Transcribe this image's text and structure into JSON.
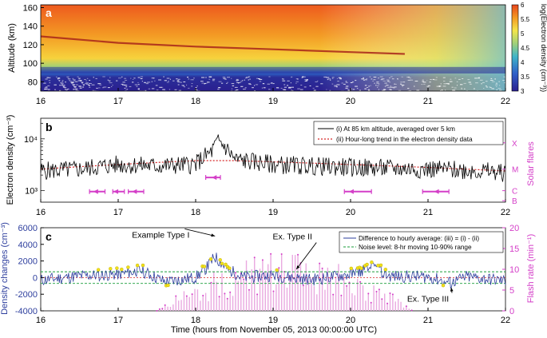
{
  "figure": {
    "xlabel": "Time (hours from November 05, 2013 00:00:00 UTC)",
    "xticks": [
      16,
      17,
      18,
      19,
      20,
      21,
      22
    ]
  },
  "colors": {
    "black": "#000000",
    "trend_red": "#d62728",
    "blue_series": "#2e3f9e",
    "magenta": "#d43fc8",
    "green_noise": "#1a9e3a",
    "peak_yellow": "#f2e21a",
    "flash_pink": "#e9a9e0"
  },
  "chart_data": [
    {
      "panel": "a",
      "type": "heatmap",
      "ylabel": "Altitude (km)",
      "yticks": [
        80,
        100,
        120,
        140,
        160
      ],
      "ylim": [
        70,
        163
      ],
      "xlim": [
        16,
        22
      ],
      "colorbar_label": "log(Electron density (cm⁻³))",
      "colorbar_ticks": [
        3,
        3.5,
        4,
        4.5,
        5,
        5.5,
        6
      ],
      "colorbar_range": [
        3,
        6
      ],
      "sporadic_layer_altitude": [
        [
          16.0,
          129
        ],
        [
          17.0,
          122
        ],
        [
          18.0,
          118
        ],
        [
          19.0,
          115
        ],
        [
          20.0,
          112
        ],
        [
          20.7,
          110
        ]
      ]
    },
    {
      "panel": "b",
      "type": "line",
      "ylabel": "Electron density (cm⁻³)",
      "yscale": "log",
      "yticks": [
        "10³",
        "10⁴"
      ],
      "xlim": [
        16,
        22
      ],
      "legend": [
        "(i) At 85 km altitude, averaged over 5 km",
        "(ii) Hour-long trend in the electron density data"
      ],
      "legend_position": "top-right",
      "right_axis_label": "Solar flares",
      "right_axis_ticks": [
        "X",
        "M",
        "C",
        "B"
      ],
      "series": [
        {
          "name": "(i) At 85 km altitude, averaged over 5 km",
          "x": [
            16.0,
            16.5,
            17.0,
            17.5,
            18.0,
            18.2,
            18.3,
            18.5,
            19.0,
            19.5,
            20.0,
            20.5,
            21.0,
            21.5,
            22.0
          ],
          "y": [
            2400,
            2600,
            3200,
            3000,
            3200,
            5500,
            9000,
            4000,
            3200,
            3000,
            2800,
            2700,
            2600,
            2500,
            2200
          ]
        },
        {
          "name": "(ii) Hour-long trend in the electron density data",
          "x": [
            16.0,
            16.5,
            17.0,
            17.5,
            18.0,
            18.5,
            19.0,
            19.5,
            20.0,
            20.5,
            21.0,
            21.5,
            22.0
          ],
          "y": [
            2600,
            2900,
            3200,
            3500,
            3800,
            3800,
            3600,
            3400,
            3200,
            3000,
            2800,
            2600,
            2400
          ]
        }
      ],
      "solar_flares": [
        {
          "start": 16.63,
          "peak": 16.72,
          "end": 16.83,
          "class": "C"
        },
        {
          "start": 16.93,
          "peak": 16.98,
          "end": 17.08,
          "class": "C"
        },
        {
          "start": 17.13,
          "peak": 17.22,
          "end": 17.33,
          "class": "C"
        },
        {
          "start": 18.13,
          "peak": 18.25,
          "end": 18.32,
          "class": "M1"
        },
        {
          "start": 19.92,
          "peak": 20.02,
          "end": 20.27,
          "class": "C"
        },
        {
          "start": 20.93,
          "peak": 21.12,
          "end": 21.27,
          "class": "C"
        }
      ]
    },
    {
      "panel": "c",
      "type": "line",
      "ylabel": "Density changes (cm⁻³)",
      "yticks": [
        -4000,
        -2000,
        0,
        2000,
        4000,
        6000
      ],
      "ylim": [
        -4000,
        6000
      ],
      "xlim": [
        16,
        22
      ],
      "right_axis_label": "Flash rate (min⁻¹)",
      "right_axis_ticks": [
        0,
        5,
        10,
        15,
        20
      ],
      "right_ylim": [
        0,
        20
      ],
      "legend": [
        "Difference to hourly average: (iii) = (i) - (ii)",
        "Noise level: 8-hr moving 10-90% range"
      ],
      "legend_position": "top-right",
      "noise_level": [
        -700,
        700
      ],
      "annotations": [
        {
          "text": "Example Type I",
          "x": 17.55,
          "y": 4800,
          "arrow_to": [
            18.25,
            5000
          ]
        },
        {
          "text": "Ex. Type II",
          "x": 19.25,
          "y": 4600,
          "arrow_to": [
            19.3,
            1000
          ]
        },
        {
          "text": "Ex. Type III",
          "x": 21.0,
          "y": -2900,
          "arrow_to": [
            21.3,
            -1200
          ]
        }
      ],
      "series": [
        {
          "name": "Difference to hourly average: (iii) = (i) - (ii)",
          "x": [
            16.0,
            16.5,
            17.0,
            17.3,
            17.6,
            18.0,
            18.15,
            18.25,
            18.4,
            18.6,
            19.0,
            19.5,
            20.0,
            20.3,
            20.5,
            21.0,
            21.3,
            21.5,
            22.0
          ],
          "y": [
            -600,
            400,
            800,
            1700,
            -1000,
            0,
            2600,
            5000,
            2300,
            0,
            600,
            -500,
            800,
            2600,
            300,
            200,
            -1300,
            200,
            -800
          ]
        }
      ],
      "flash_rate": {
        "x_range": [
          17.5,
          20.8
        ],
        "peak": 14
      }
    }
  ],
  "labels": {
    "panel_a": "a",
    "panel_b": "b",
    "panel_c": "c"
  }
}
